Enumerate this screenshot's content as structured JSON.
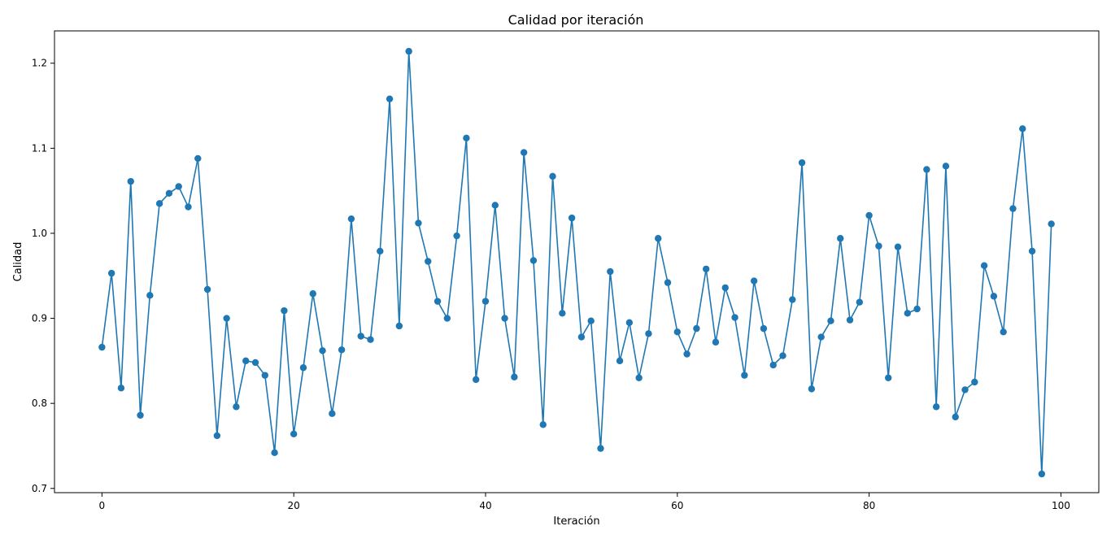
{
  "chart_data": {
    "type": "line",
    "title": "Calidad por iteración",
    "xlabel": "Iteración",
    "ylabel": "Calidad",
    "xlim": [
      -4.95,
      103.95
    ],
    "ylim": [
      0.695,
      1.238
    ],
    "xticks": [
      0,
      20,
      40,
      60,
      80,
      100
    ],
    "yticks": [
      0.7,
      0.8,
      0.9,
      1.0,
      1.1,
      1.2
    ],
    "ytick_labels": [
      "0.7",
      "0.8",
      "0.9",
      "1.0",
      "1.1",
      "1.2"
    ],
    "grid": false,
    "color": "#1f77b4",
    "marker": "circle",
    "x": [
      0,
      1,
      2,
      3,
      4,
      5,
      6,
      7,
      8,
      9,
      10,
      11,
      12,
      13,
      14,
      15,
      16,
      17,
      18,
      19,
      20,
      21,
      22,
      23,
      24,
      25,
      26,
      27,
      28,
      29,
      30,
      31,
      32,
      33,
      34,
      35,
      36,
      37,
      38,
      39,
      40,
      41,
      42,
      43,
      44,
      45,
      46,
      47,
      48,
      49,
      50,
      51,
      52,
      53,
      54,
      55,
      56,
      57,
      58,
      59,
      60,
      61,
      62,
      63,
      64,
      65,
      66,
      67,
      68,
      69,
      70,
      71,
      72,
      73,
      74,
      75,
      76,
      77,
      78,
      79,
      80,
      81,
      82,
      83,
      84,
      85,
      86,
      87,
      88,
      89,
      90,
      91,
      92,
      93,
      94,
      95,
      96,
      97,
      98,
      99
    ],
    "y": [
      0.866,
      0.953,
      0.818,
      1.061,
      0.786,
      0.927,
      1.035,
      1.047,
      1.055,
      1.031,
      1.088,
      0.934,
      0.762,
      0.9,
      0.796,
      0.85,
      0.848,
      0.833,
      0.742,
      0.909,
      0.764,
      0.842,
      0.929,
      0.862,
      0.788,
      0.863,
      1.017,
      0.879,
      0.875,
      0.979,
      1.158,
      0.891,
      1.214,
      1.012,
      0.967,
      0.92,
      0.9,
      0.997,
      1.112,
      0.828,
      0.92,
      1.033,
      0.9,
      0.831,
      1.095,
      0.968,
      0.775,
      1.067,
      0.906,
      1.018,
      0.878,
      0.897,
      0.747,
      0.955,
      0.85,
      0.895,
      0.83,
      0.882,
      0.994,
      0.942,
      0.884,
      0.858,
      0.888,
      0.958,
      0.872,
      0.936,
      0.901,
      0.833,
      0.944,
      0.888,
      0.845,
      0.856,
      0.922,
      1.083,
      0.817,
      0.878,
      0.897,
      0.994,
      0.898,
      0.919,
      1.021,
      0.985,
      0.83,
      0.984,
      0.906,
      0.911,
      1.075,
      0.796,
      1.079,
      0.784,
      0.816,
      0.825,
      0.962,
      0.926,
      0.884,
      1.029,
      1.123,
      0.979,
      0.717,
      1.011
    ]
  }
}
